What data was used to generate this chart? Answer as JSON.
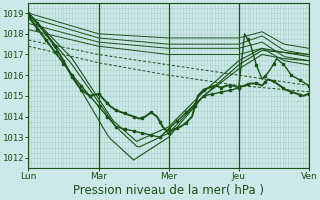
{
  "bg_color": "#cce8e8",
  "grid_minor_color": "#aad4cc",
  "grid_major_color": "#88c4b8",
  "line_dark": "#1a5218",
  "line_med": "#2d7a2d",
  "ylim": [
    1011.5,
    1019.5
  ],
  "yticks": [
    1012,
    1013,
    1014,
    1015,
    1016,
    1017,
    1018,
    1019
  ],
  "xlabel": "Pression niveau de la mer( hPa )",
  "day_labels": [
    "Lun",
    "Mar",
    "Mer",
    "Jeu",
    "Ven"
  ],
  "day_positions": [
    0,
    48,
    96,
    144,
    192
  ],
  "tick_fontsize": 6.5,
  "xlabel_fontsize": 8.5,
  "n_points": 97
}
